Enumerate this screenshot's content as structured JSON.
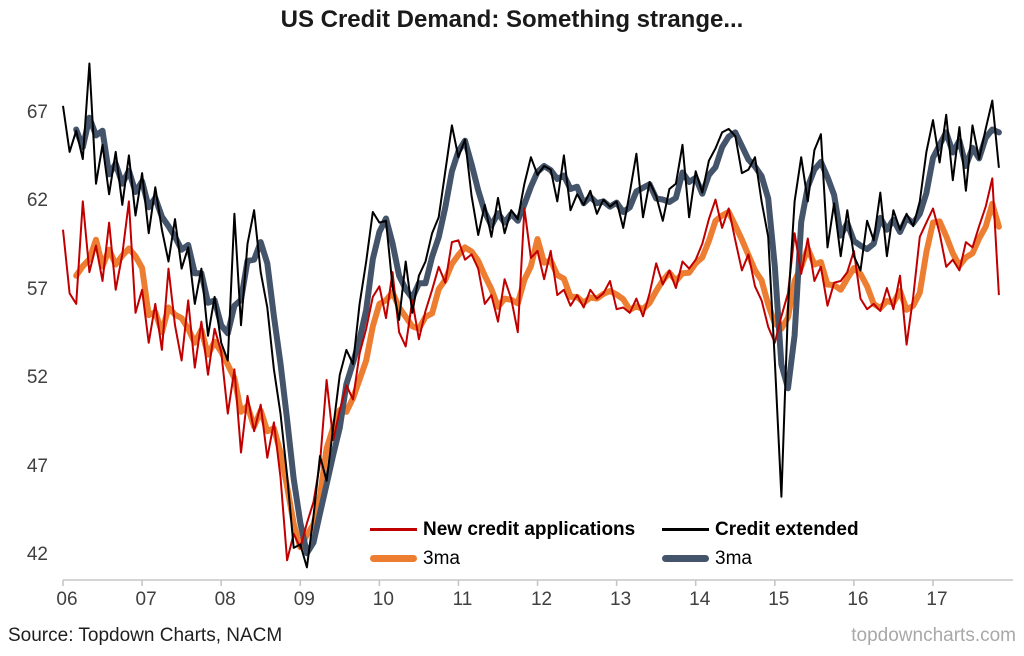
{
  "title": "US Credit Demand: Something strange...",
  "footer": {
    "source": "Source: Topdown Charts, NACM",
    "watermark": "topdowncharts.com"
  },
  "legend": {
    "items": [
      {
        "label": "New credit applications",
        "color": "#C00000",
        "style": "thin"
      },
      {
        "label": "Credit extended",
        "color": "#000000",
        "style": "thin"
      },
      {
        "label": "3ma",
        "color": "#ED7D31",
        "style": "thick"
      },
      {
        "label": "3ma",
        "color": "#44546A",
        "style": "thick"
      }
    ]
  },
  "chart_data": {
    "type": "line",
    "title": "US Credit Demand: Something strange...",
    "xlabel": "",
    "ylabel": "",
    "frequency": "monthly",
    "start": "Jan 2006",
    "end": "Nov 2017",
    "x_tick_labels": [
      "06",
      "07",
      "08",
      "09",
      "10",
      "11",
      "12",
      "13",
      "14",
      "15",
      "16",
      "17"
    ],
    "y_ticks": [
      42,
      47,
      52,
      57,
      62,
      67
    ],
    "ylim": [
      40.5,
      70.5
    ],
    "grid": false,
    "legend_position": "inside bottom-center",
    "axis_color": "#C6C6C6",
    "series": [
      {
        "id": "red",
        "name": "New credit applications",
        "color": "#C00000",
        "style": "thin",
        "values": [
          60.4,
          56.8,
          56.2,
          62,
          58,
          59.5,
          57.5,
          60.8,
          57,
          59,
          62,
          55.7,
          57,
          54,
          56.2,
          53.6,
          58.2,
          55,
          53,
          56.4,
          52.6,
          55.2,
          52.2,
          54.8,
          53.5,
          50,
          52.5,
          47.8,
          51,
          49,
          50.5,
          47.5,
          49.5,
          46.4,
          41.7,
          43.2,
          42.4,
          43.8,
          45,
          47.2,
          51.9,
          48.5,
          50.2,
          51.6,
          50.8,
          53.4,
          54.8,
          56.6,
          57.2,
          55.4,
          58,
          54.6,
          53.8,
          56.4,
          54.2,
          55.8,
          57,
          58.3,
          57.4,
          59.7,
          59.8,
          58.7,
          59,
          58.2,
          56.2,
          56.7,
          55.2,
          57.6,
          56.5,
          54.6,
          61.6,
          58.8,
          59.2,
          57.6,
          59.2,
          56.7,
          57,
          56.1,
          56.7,
          56,
          57,
          56.5,
          56.8,
          57.5,
          55.9,
          56,
          55.7,
          56.5,
          55.5,
          56.8,
          58.5,
          57.3,
          58.1,
          57.1,
          58.6,
          58.2,
          58.7,
          59.6,
          61,
          62.1,
          60.5,
          61.6,
          59.8,
          58.1,
          59,
          57.2,
          56.4,
          54.9,
          54,
          55.5,
          56.8,
          60.2,
          57.9,
          59.9,
          57.5,
          58.3,
          56.1,
          57.4,
          57.5,
          58,
          59.2,
          56.5,
          55.9,
          56.2,
          55.8,
          57.1,
          55.9,
          57.8,
          53.9,
          56.6,
          60,
          60.8,
          61.6,
          60.2,
          58.3,
          58.7,
          58.1,
          59.7,
          59.4,
          60.6,
          61.7,
          63.3,
          56.7
        ]
      },
      {
        "id": "black",
        "name": "Credit extended",
        "color": "#000000",
        "style": "thin",
        "values": [
          67.4,
          64.8,
          66,
          64.4,
          69.8,
          63,
          65.2,
          62.4,
          64.8,
          61.8,
          64.6,
          61.2,
          63.6,
          60.2,
          62.8,
          60.4,
          58.6,
          61,
          58.2,
          59.4,
          56.2,
          58.2,
          54.4,
          56.6,
          54,
          53,
          61.3,
          55,
          59.6,
          61.5,
          58,
          56,
          52.5,
          50,
          46.5,
          42.4,
          42.6,
          41.3,
          44.2,
          47.6,
          46.2,
          49.2,
          52.2,
          53.6,
          52.8,
          56.2,
          58.6,
          61.4,
          60.8,
          60.9,
          57.2,
          55.3,
          58.6,
          55.7,
          57.8,
          58.6,
          60.2,
          61.1,
          63.7,
          66.3,
          64.5,
          65.5,
          62.3,
          60.1,
          61.8,
          60,
          62.2,
          60.2,
          61.5,
          61,
          63,
          64.5,
          63.5,
          64,
          63.8,
          62,
          64.6,
          61.5,
          62.4,
          61.8,
          62.6,
          61.3,
          62.1,
          61.7,
          62,
          60.5,
          62.5,
          64.7,
          61.1,
          63.1,
          62.3,
          60.9,
          62.7,
          63,
          65.2,
          61.1,
          63.7,
          62.5,
          64.3,
          65,
          65.9,
          66.1,
          65.7,
          63.6,
          63.8,
          64.5,
          62,
          60,
          53,
          45.3,
          56,
          62,
          64.5,
          62,
          64.9,
          65.8,
          59.4,
          61.9,
          58.9,
          61.5,
          58.9,
          58.1,
          60.9,
          59.8,
          62.5,
          58.9,
          61.5,
          60.4,
          61.3,
          60.6,
          62,
          64.8,
          66.6,
          64.2,
          66.9,
          63.2,
          66.2,
          62.6,
          66.3,
          64.4,
          66.1,
          67.7,
          63.9
        ]
      },
      {
        "id": "orange",
        "name": "3ma",
        "color": "#ED7D31",
        "style": "thick",
        "derived_from": "red",
        "smoothing": "3-month moving average of New credit applications"
      },
      {
        "id": "slate",
        "name": "3ma",
        "color": "#44546A",
        "style": "thick",
        "derived_from": "black",
        "smoothing": "3-month moving average of Credit extended"
      }
    ]
  }
}
